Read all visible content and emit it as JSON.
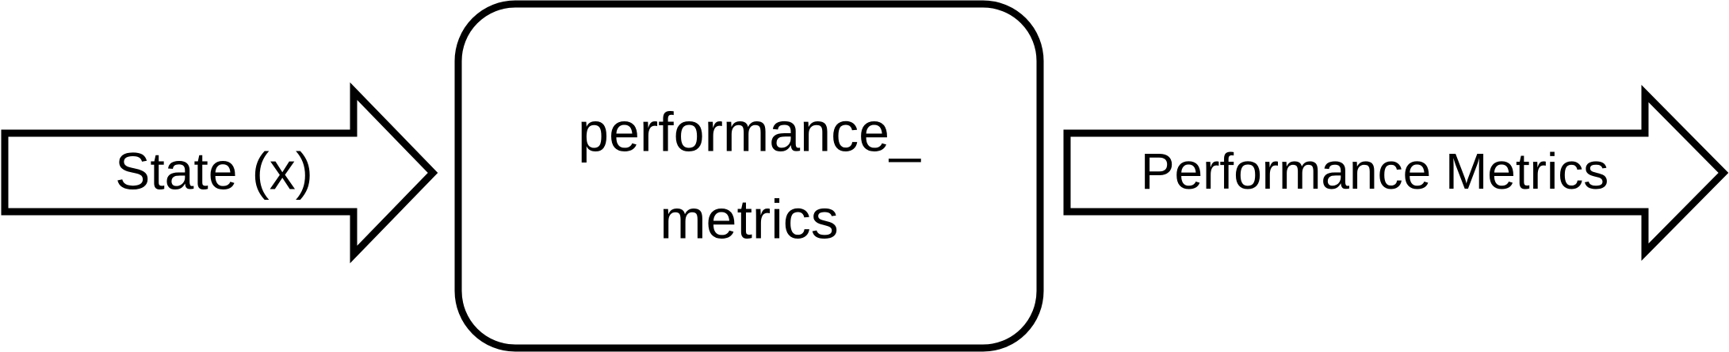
{
  "diagram": {
    "input_arrow": {
      "label": "State (x)"
    },
    "block": {
      "label_line1": "performance_",
      "label_line2": "metrics"
    },
    "output_arrow": {
      "label": "Performance Metrics"
    },
    "colors": {
      "stroke": "#000000",
      "fill": "#ffffff"
    }
  }
}
